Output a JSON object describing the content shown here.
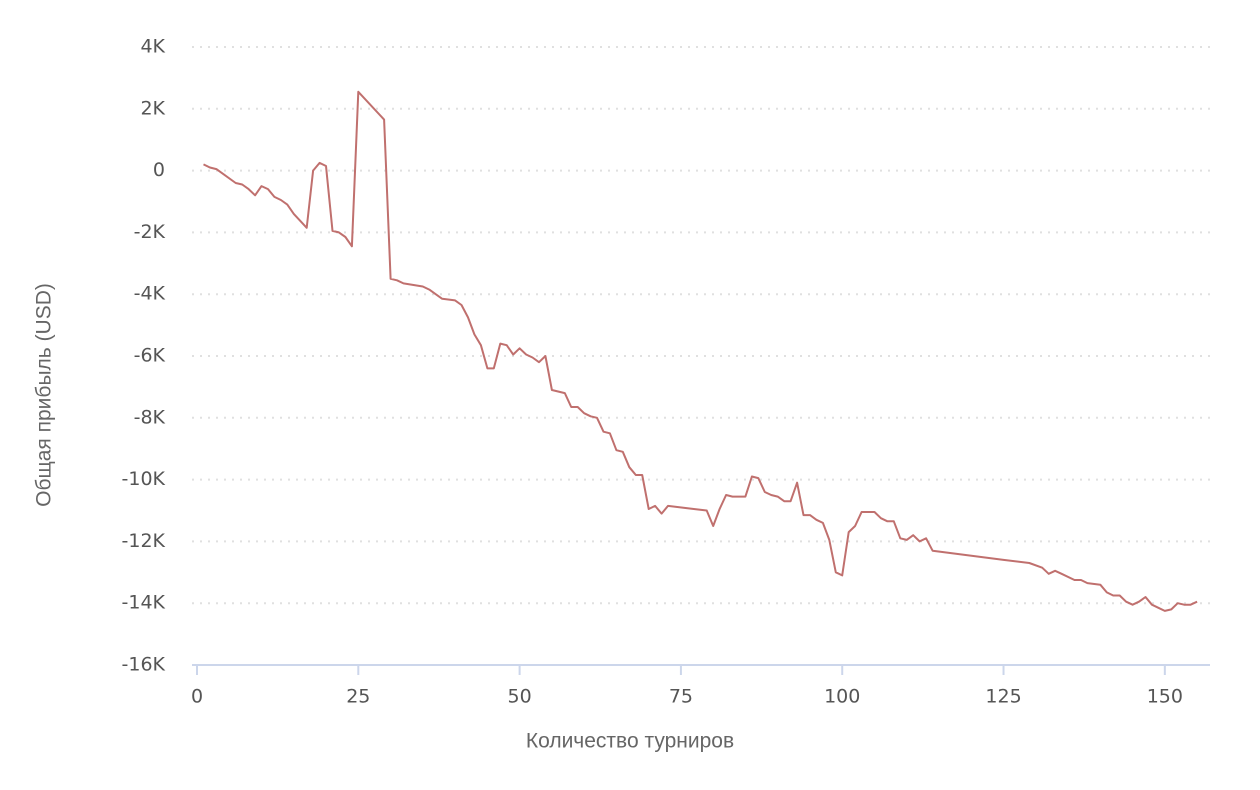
{
  "chart_data": {
    "type": "line",
    "x_label": "Количество турниров",
    "y_label": "Общая прибыль (USD)",
    "xlim": [
      0,
      157
    ],
    "ylim": [
      -16000,
      4000
    ],
    "xticks": [
      0,
      25,
      50,
      75,
      100,
      125,
      150
    ],
    "yticks": [
      {
        "value": -16000,
        "label": "-16K"
      },
      {
        "value": -14000,
        "label": "-14K"
      },
      {
        "value": -12000,
        "label": "-12K"
      },
      {
        "value": -10000,
        "label": "-10K"
      },
      {
        "value": -8000,
        "label": "-8K"
      },
      {
        "value": -6000,
        "label": "-6K"
      },
      {
        "value": -4000,
        "label": "-4K"
      },
      {
        "value": -2000,
        "label": "-2K"
      },
      0,
      {
        "value": 2000,
        "label": "2K"
      },
      {
        "value": 4000,
        "label": "4K"
      }
    ],
    "grid": true,
    "color": "#c0706e",
    "x": [
      1,
      2,
      3,
      4,
      6,
      7,
      8,
      9,
      10,
      11,
      12,
      13,
      14,
      15,
      17,
      18,
      19,
      20,
      21,
      22,
      23,
      24,
      25,
      29,
      30,
      31,
      32,
      35,
      36,
      37,
      38,
      40,
      41,
      42,
      43,
      44,
      45,
      46,
      47,
      48,
      49,
      50,
      51,
      52,
      53,
      54,
      55,
      57,
      58,
      59,
      60,
      61,
      62,
      63,
      64,
      65,
      66,
      67,
      68,
      69,
      70,
      71,
      72,
      73,
      77,
      79,
      80,
      81,
      82,
      83,
      85,
      86,
      87,
      88,
      89,
      90,
      91,
      92,
      93,
      94,
      95,
      96,
      97,
      98,
      99,
      100,
      101,
      102,
      103,
      104,
      105,
      106,
      107,
      108,
      109,
      110,
      111,
      112,
      113,
      114,
      125,
      129,
      131,
      132,
      133,
      134,
      136,
      137,
      138,
      140,
      141,
      142,
      143,
      144,
      145,
      146,
      147,
      148,
      149,
      150,
      151,
      152,
      153,
      154,
      155
    ],
    "values": [
      200,
      100,
      50,
      -100,
      -400,
      -450,
      -600,
      -800,
      -500,
      -600,
      -850,
      -950,
      -1100,
      -1400,
      -1850,
      0,
      250,
      150,
      -1950,
      -2000,
      -2150,
      -2450,
      2550,
      1650,
      -3500,
      -3550,
      -3650,
      -3750,
      -3850,
      -4000,
      -4150,
      -4200,
      -4350,
      -4750,
      -5300,
      -5650,
      -6400,
      -6400,
      -5600,
      -5650,
      -5950,
      -5750,
      -5950,
      -6050,
      -6200,
      -6000,
      -7100,
      -7200,
      -7650,
      -7650,
      -7850,
      -7950,
      -8000,
      -8450,
      -8500,
      -9050,
      -9100,
      -9600,
      -9850,
      -9850,
      -10950,
      -10850,
      -11100,
      -10850,
      -10950,
      -11000,
      -11500,
      -10950,
      -10500,
      -10550,
      -10550,
      -9900,
      -9950,
      -10400,
      -10500,
      -10550,
      -10700,
      -10700,
      -10100,
      -11150,
      -11150,
      -11300,
      -11400,
      -11950,
      -13000,
      -13100,
      -11700,
      -11500,
      -11050,
      -11050,
      -11050,
      -11250,
      -11350,
      -11350,
      -11900,
      -11950,
      -11800,
      -12000,
      -11900,
      -12300,
      -12600,
      -12700,
      -12850,
      -13050,
      -12950,
      -13050,
      -13250,
      -13250,
      -13350,
      -13400,
      -13650,
      -13750,
      -13750,
      -13950,
      -14050,
      -13950,
      -13800,
      -14050,
      -14150,
      -14250,
      -14200,
      -14000,
      -14050,
      -14050,
      -13950
    ]
  }
}
